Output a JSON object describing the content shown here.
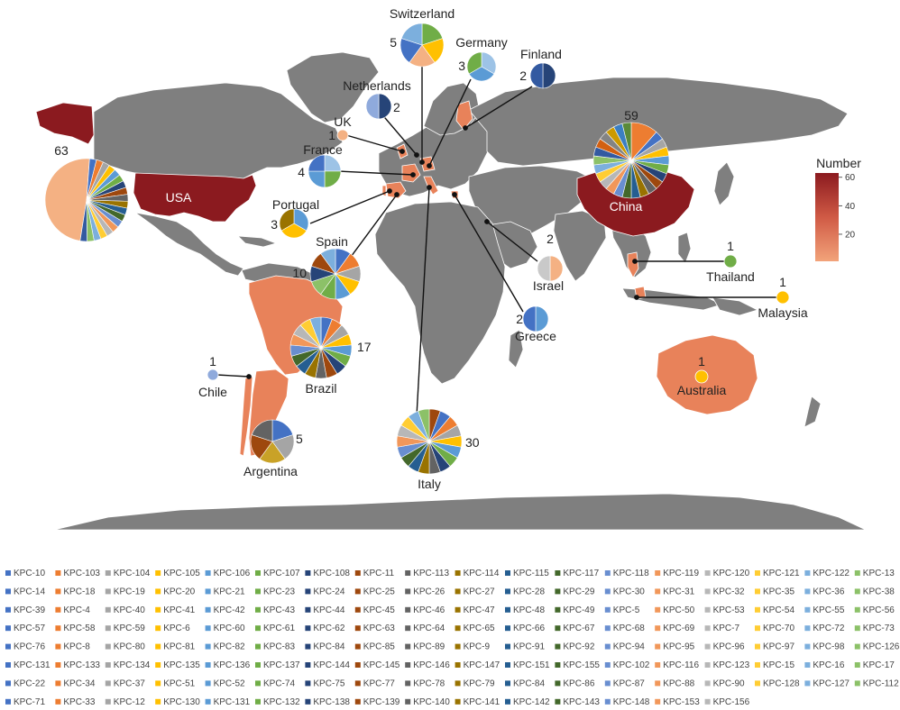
{
  "colorbar": {
    "title": "Number",
    "ticks": [
      "60",
      "40",
      "20"
    ],
    "tick_values": [
      60,
      40,
      20
    ],
    "min": 1,
    "max": 63,
    "color_low": "#f2a37a",
    "color_high": "#8b1a1f"
  },
  "countries": [
    {
      "id": "usa",
      "name": "USA",
      "count": "63",
      "pie_colors": [
        "#f4b183",
        "#4472c4",
        "#ed7d31",
        "#a5a5a5",
        "#ffc000",
        "#5b9bd5",
        "#70ad47",
        "#264478",
        "#9e480e",
        "#636363",
        "#997300",
        "#255e91",
        "#43682b",
        "#698ed0",
        "#f1975a",
        "#b7b7b7",
        "#ffcd33",
        "#7cafdd",
        "#8cc168",
        "#335aa1"
      ]
    },
    {
      "id": "china",
      "name": "China",
      "count": "59",
      "pie_colors": [
        "#ed7d31",
        "#4472c4",
        "#a5a5a5",
        "#ffc000",
        "#5b9bd5",
        "#70ad47",
        "#264478",
        "#9e480e",
        "#636363",
        "#997300",
        "#255e91",
        "#43682b",
        "#698ed0",
        "#f1975a",
        "#b7b7b7",
        "#ffcd33",
        "#7cafdd",
        "#8cc168",
        "#335aa1",
        "#d26012",
        "#848484",
        "#cc9a00",
        "#3c7fc2",
        "#5a8a39"
      ]
    },
    {
      "id": "italy",
      "name": "Italy",
      "count": "30",
      "pie_colors": [
        "#9e480e",
        "#4472c4",
        "#ed7d31",
        "#a5a5a5",
        "#ffc000",
        "#5b9bd5",
        "#70ad47",
        "#264478",
        "#636363",
        "#997300",
        "#255e91",
        "#43682b",
        "#698ed0",
        "#f1975a",
        "#b7b7b7",
        "#ffcd33",
        "#7cafdd",
        "#8cc168"
      ]
    },
    {
      "id": "brazil",
      "name": "Brazil",
      "count": "17",
      "pie_colors": [
        "#4472c4",
        "#ed7d31",
        "#a5a5a5",
        "#ffc000",
        "#5b9bd5",
        "#70ad47",
        "#264478",
        "#9e480e",
        "#636363",
        "#997300",
        "#255e91",
        "#43682b",
        "#698ed0",
        "#f1975a",
        "#b7b7b7",
        "#ffcd33",
        "#7cafdd"
      ]
    },
    {
      "id": "spain",
      "name": "Spain",
      "count": "10",
      "pie_colors": [
        "#4472c4",
        "#ed7d31",
        "#a5a5a5",
        "#ffc000",
        "#5b9bd5",
        "#70ad47",
        "#8cc168",
        "#264478",
        "#9e480e",
        "#7cafdd"
      ]
    },
    {
      "id": "switzerland",
      "name": "Switzerland",
      "count": "5",
      "pie_colors": [
        "#70ad47",
        "#ffc000",
        "#f4b183",
        "#4472c4",
        "#7cafdd"
      ]
    },
    {
      "id": "argentina",
      "name": "Argentina",
      "count": "5",
      "pie_colors": [
        "#4472c4",
        "#a5a5a5",
        "#c9a227",
        "#9e480e",
        "#636363"
      ]
    },
    {
      "id": "france",
      "name": "France",
      "count": "4",
      "pie_colors": [
        "#9dc3e6",
        "#70ad47",
        "#5b9bd5",
        "#4472c4"
      ]
    },
    {
      "id": "germany",
      "name": "Germany",
      "count": "3",
      "pie_colors": [
        "#9dc3e6",
        "#5b9bd5",
        "#70ad47"
      ]
    },
    {
      "id": "portugal",
      "name": "Portugal",
      "count": "3",
      "pie_colors": [
        "#5b9bd5",
        "#ffc000",
        "#997300"
      ]
    },
    {
      "id": "finland",
      "name": "Finland",
      "count": "2",
      "pie_colors": [
        "#264478",
        "#335aa1"
      ]
    },
    {
      "id": "netherlands",
      "name": "Netherlands",
      "count": "2",
      "pie_colors": [
        "#264478",
        "#8faadc"
      ]
    },
    {
      "id": "israel",
      "name": "Israel",
      "count": "2",
      "pie_colors": [
        "#f4b183",
        "#c9c9c9"
      ]
    },
    {
      "id": "greece",
      "name": "Greece",
      "count": "2",
      "pie_colors": [
        "#5b9bd5",
        "#4472c4"
      ]
    },
    {
      "id": "uk",
      "name": "UK",
      "count": "1",
      "pie_colors": [
        "#f4b183"
      ]
    },
    {
      "id": "chile",
      "name": "Chile",
      "count": "1",
      "pie_colors": [
        "#8faadc"
      ]
    },
    {
      "id": "thailand",
      "name": "Thailand",
      "count": "1",
      "pie_colors": [
        "#70ad47"
      ]
    },
    {
      "id": "malaysia",
      "name": "Malaysia",
      "count": "1",
      "pie_colors": [
        "#ffc000"
      ]
    },
    {
      "id": "australia",
      "name": "Australia",
      "count": "1",
      "pie_colors": [
        "#ffc000"
      ]
    }
  ],
  "legend": {
    "items": [
      "KPC-10",
      "KPC-103",
      "KPC-104",
      "KPC-105",
      "KPC-106",
      "KPC-107",
      "KPC-108",
      "KPC-11",
      "KPC-113",
      "KPC-114",
      "KPC-115",
      "KPC-117",
      "KPC-118",
      "KPC-119",
      "KPC-120",
      "KPC-121",
      "KPC-122",
      "KPC-13",
      "KPC-14",
      "KPC-18",
      "KPC-19",
      "KPC-20",
      "KPC-21",
      "KPC-23",
      "KPC-24",
      "KPC-25",
      "KPC-26",
      "KPC-27",
      "KPC-28",
      "KPC-29",
      "KPC-30",
      "KPC-31",
      "KPC-32",
      "KPC-35",
      "KPC-36",
      "KPC-38",
      "KPC-39",
      "KPC-4",
      "KPC-40",
      "KPC-41",
      "KPC-42",
      "KPC-43",
      "KPC-44",
      "KPC-45",
      "KPC-46",
      "KPC-47",
      "KPC-48",
      "KPC-49",
      "KPC-5",
      "KPC-50",
      "KPC-53",
      "KPC-54",
      "KPC-55",
      "KPC-56",
      "KPC-57",
      "KPC-58",
      "KPC-59",
      "KPC-6",
      "KPC-60",
      "KPC-61",
      "KPC-62",
      "KPC-63",
      "KPC-64",
      "KPC-65",
      "KPC-66",
      "KPC-67",
      "KPC-68",
      "KPC-69",
      "KPC-7",
      "KPC-70",
      "KPC-72",
      "KPC-73",
      "KPC-76",
      "KPC-8",
      "KPC-80",
      "KPC-81",
      "KPC-82",
      "KPC-83",
      "KPC-84",
      "KPC-85",
      "KPC-89",
      "KPC-9",
      "KPC-91",
      "KPC-92",
      "KPC-94",
      "KPC-95",
      "KPC-96",
      "KPC-97",
      "KPC-98",
      "KPC-126",
      "KPC-131",
      "KPC-133",
      "KPC-134",
      "KPC-135",
      "KPC-136",
      "KPC-137",
      "KPC-144",
      "KPC-145",
      "KPC-146",
      "KPC-147",
      "KPC-151",
      "KPC-155",
      "KPC-102",
      "KPC-116",
      "KPC-123",
      "KPC-15",
      "KPC-16",
      "KPC-17",
      "KPC-22",
      "KPC-34",
      "KPC-37",
      "KPC-51",
      "KPC-52",
      "KPC-74",
      "KPC-75",
      "KPC-77",
      "KPC-78",
      "KPC-79",
      "KPC-84",
      "KPC-86",
      "KPC-87",
      "KPC-88",
      "KPC-90",
      "KPC-128",
      "KPC-127",
      "KPC-112",
      "KPC-71",
      "KPC-33",
      "KPC-12",
      "KPC-130",
      "KPC-131",
      "KPC-132",
      "KPC-138",
      "KPC-139",
      "KPC-140",
      "KPC-141",
      "KPC-142",
      "KPC-143",
      "KPC-148",
      "KPC-153",
      "KPC-156"
    ],
    "colors": [
      "#4472c4",
      "#ed7d31",
      "#a5a5a5",
      "#ffc000",
      "#5b9bd5",
      "#70ad47",
      "#264478",
      "#9e480e",
      "#636363",
      "#997300",
      "#255e91",
      "#43682b",
      "#698ed0",
      "#f1975a",
      "#b7b7b7",
      "#ffcd33",
      "#7cafdd",
      "#8cc168"
    ]
  }
}
